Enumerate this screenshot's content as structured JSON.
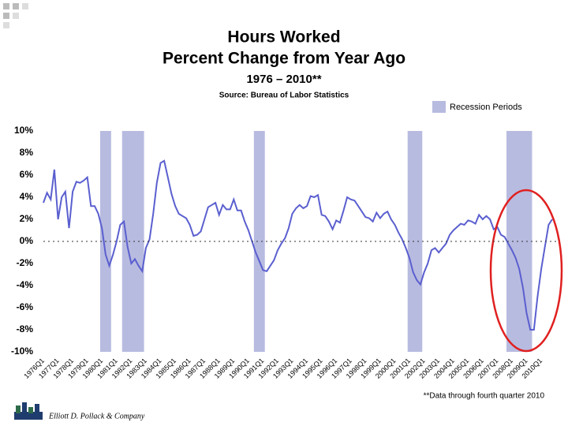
{
  "chart_data": {
    "type": "line",
    "title": [
      "Hours Worked",
      "Percent Change from Year Ago"
    ],
    "subtitle": "1976 – 2010**",
    "source": "Source: Bureau of Labor Statistics",
    "note": "**Data through fourth quarter 2010",
    "footer": "Elliott D. Pollack & Company",
    "recession_label": "Recession Periods",
    "recession_color": "#b8bbe0",
    "recessions": [
      {
        "start": "1980Q1",
        "end": "1980Q3"
      },
      {
        "start": "1981Q3",
        "end": "1982Q4"
      },
      {
        "start": "1990Q3",
        "end": "1991Q1"
      },
      {
        "start": "2001Q1",
        "end": "2001Q4"
      },
      {
        "start": "2007Q4",
        "end": "2009Q2"
      }
    ],
    "categories": [
      "1976Q1",
      null,
      null,
      null,
      "1977Q1",
      null,
      null,
      null,
      "1978Q1",
      null,
      null,
      null,
      "1979Q1",
      null,
      null,
      null,
      "1980Q1",
      null,
      null,
      null,
      "1981Q1",
      null,
      null,
      null,
      "1982Q1",
      null,
      null,
      null,
      "1983Q1",
      null,
      null,
      null,
      "1984Q1",
      null,
      null,
      null,
      "1985Q1",
      null,
      null,
      null,
      "1986Q1",
      null,
      null,
      null,
      "1987Q1",
      null,
      null,
      null,
      "1988Q1",
      null,
      null,
      null,
      "1989Q1",
      null,
      null,
      null,
      "1990Q1",
      null,
      null,
      null,
      "1991Q1",
      null,
      null,
      null,
      "1992Q1",
      null,
      null,
      null,
      "1993Q1",
      null,
      null,
      null,
      "1994Q1",
      null,
      null,
      null,
      "1995Q1",
      null,
      null,
      null,
      "1996Q1",
      null,
      null,
      null,
      "1997Q1",
      null,
      null,
      null,
      "1998Q1",
      null,
      null,
      null,
      "1999Q1",
      null,
      null,
      null,
      "2000Q1",
      null,
      null,
      null,
      "2001Q1",
      null,
      null,
      null,
      "2002Q1",
      null,
      null,
      null,
      "2003Q1",
      null,
      null,
      null,
      "2004Q1",
      null,
      null,
      null,
      "2005Q1",
      null,
      null,
      null,
      "2006Q1",
      null,
      null,
      null,
      "2007Q1",
      null,
      null,
      null,
      "2008Q1",
      null,
      null,
      null,
      "2009Q1",
      null,
      null,
      null,
      "2010Q1",
      null,
      null,
      null
    ],
    "series": [
      {
        "name": "Hours Worked",
        "color": "#5a5fcf",
        "values": [
          3.5,
          4.4,
          3.8,
          6.5,
          2.0,
          4.0,
          4.5,
          1.2,
          4.5,
          5.4,
          5.3,
          5.5,
          5.8,
          3.2,
          3.2,
          2.5,
          1.2,
          -1.2,
          -2.2,
          -1.2,
          0.0,
          1.5,
          1.8,
          -0.5,
          -2.0,
          -1.6,
          -2.2,
          -2.7,
          -0.6,
          0.2,
          2.5,
          5.3,
          7.1,
          7.3,
          5.8,
          4.3,
          3.2,
          2.5,
          2.3,
          2.1,
          1.5,
          0.5,
          0.6,
          0.9,
          2.0,
          3.1,
          3.3,
          3.5,
          2.4,
          3.3,
          2.9,
          2.9,
          3.8,
          2.8,
          2.8,
          1.8,
          1.0,
          0.0,
          -1.0,
          -1.8,
          -2.6,
          -2.7,
          -2.2,
          -1.7,
          -0.8,
          -0.2,
          0.3,
          1.2,
          2.5,
          3.0,
          3.3,
          3.0,
          3.2,
          4.1,
          4.0,
          4.2,
          2.4,
          2.3,
          1.8,
          1.1,
          1.9,
          1.7,
          2.8,
          4.0,
          3.8,
          3.7,
          3.2,
          2.7,
          2.2,
          2.1,
          1.8,
          2.6,
          2.1,
          2.5,
          2.7,
          2.0,
          1.5,
          0.8,
          0.2,
          -0.6,
          -1.5,
          -2.8,
          -3.5,
          -3.9,
          -2.8,
          -2.0,
          -0.8,
          -0.6,
          -1.0,
          -0.6,
          -0.2,
          0.6,
          1.0,
          1.3,
          1.6,
          1.5,
          1.9,
          1.8,
          1.6,
          2.4,
          2.0,
          2.3,
          2.0,
          1.1,
          1.3,
          0.6,
          0.4,
          -0.2,
          -0.8,
          -1.5,
          -2.5,
          -4.2,
          -6.5,
          -8.0,
          -8.0,
          -5.0,
          -2.5,
          -0.5,
          1.5,
          2.0
        ]
      }
    ],
    "ylim": [
      -10,
      10
    ],
    "yticks": [
      {
        "value": -10,
        "label": "-10%"
      },
      {
        "value": -8,
        "label": "-8%"
      },
      {
        "value": -6,
        "label": "-6%"
      },
      {
        "value": -4,
        "label": "-4%"
      },
      {
        "value": -2,
        "label": "-2%"
      },
      {
        "value": 0,
        "label": "0%"
      },
      {
        "value": 2,
        "label": "2%"
      },
      {
        "value": 4,
        "label": "4%"
      },
      {
        "value": 6,
        "label": "6%"
      },
      {
        "value": 8,
        "label": "8%"
      },
      {
        "value": 10,
        "label": "10%"
      }
    ]
  }
}
